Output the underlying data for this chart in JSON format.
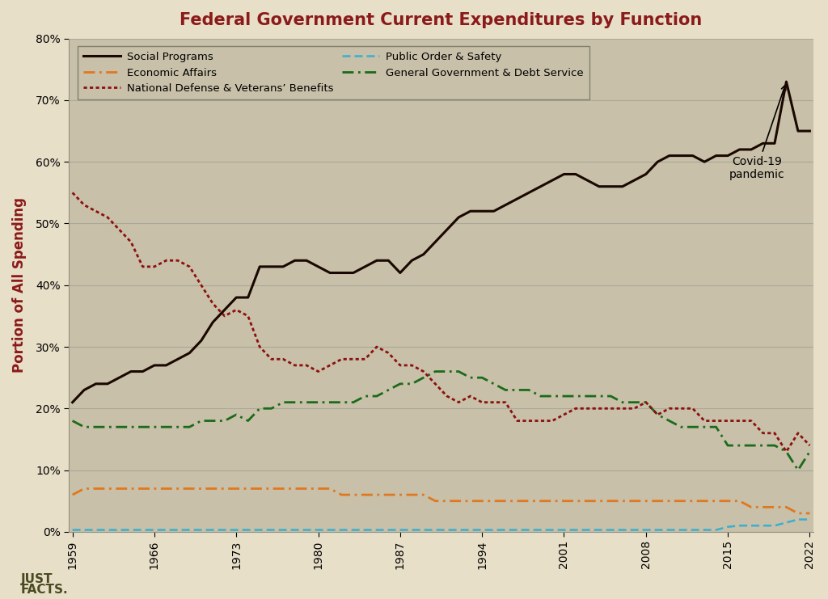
{
  "title": "Federal Government Current Expenditures by Function",
  "ylabel": "Portion of All Spending",
  "fig_bg_color": "#e8dfc8",
  "plot_bg_color": "#c8c0a8",
  "title_color": "#8b1a1a",
  "ylabel_color": "#8b1a1a",
  "years": [
    1959,
    1960,
    1961,
    1962,
    1963,
    1964,
    1965,
    1966,
    1967,
    1968,
    1969,
    1970,
    1971,
    1972,
    1973,
    1974,
    1975,
    1976,
    1977,
    1978,
    1979,
    1980,
    1981,
    1982,
    1983,
    1984,
    1985,
    1986,
    1987,
    1988,
    1989,
    1990,
    1991,
    1992,
    1993,
    1994,
    1995,
    1996,
    1997,
    1998,
    1999,
    2000,
    2001,
    2002,
    2003,
    2004,
    2005,
    2006,
    2007,
    2008,
    2009,
    2010,
    2011,
    2012,
    2013,
    2014,
    2015,
    2016,
    2017,
    2018,
    2019,
    2020,
    2021,
    2022
  ],
  "social_programs": [
    21,
    23,
    24,
    24,
    25,
    26,
    26,
    27,
    27,
    28,
    29,
    31,
    34,
    36,
    38,
    38,
    43,
    43,
    43,
    44,
    44,
    43,
    42,
    42,
    42,
    43,
    44,
    44,
    42,
    44,
    45,
    47,
    49,
    51,
    52,
    52,
    52,
    53,
    54,
    55,
    56,
    57,
    58,
    58,
    57,
    56,
    56,
    56,
    57,
    58,
    60,
    61,
    61,
    61,
    60,
    61,
    61,
    62,
    62,
    63,
    63,
    73,
    65,
    65
  ],
  "national_defense": [
    55,
    53,
    52,
    51,
    49,
    47,
    43,
    43,
    44,
    44,
    43,
    40,
    37,
    35,
    36,
    35,
    30,
    28,
    28,
    27,
    27,
    26,
    27,
    28,
    28,
    28,
    30,
    29,
    27,
    27,
    26,
    24,
    22,
    21,
    22,
    21,
    21,
    21,
    18,
    18,
    18,
    18,
    19,
    20,
    20,
    20,
    20,
    20,
    20,
    21,
    19,
    20,
    20,
    20,
    18,
    18,
    18,
    18,
    18,
    16,
    16,
    13,
    16,
    14
  ],
  "general_govt": [
    18,
    17,
    17,
    17,
    17,
    17,
    17,
    17,
    17,
    17,
    17,
    18,
    18,
    18,
    19,
    18,
    20,
    20,
    21,
    21,
    21,
    21,
    21,
    21,
    21,
    22,
    22,
    23,
    24,
    24,
    25,
    26,
    26,
    26,
    25,
    25,
    24,
    23,
    23,
    23,
    22,
    22,
    22,
    22,
    22,
    22,
    22,
    21,
    21,
    21,
    19,
    18,
    17,
    17,
    17,
    17,
    14,
    14,
    14,
    14,
    14,
    13,
    10,
    13
  ],
  "economic_affairs": [
    6,
    7,
    7,
    7,
    7,
    7,
    7,
    7,
    7,
    7,
    7,
    7,
    7,
    7,
    7,
    7,
    7,
    7,
    7,
    7,
    7,
    7,
    7,
    6,
    6,
    6,
    6,
    6,
    6,
    6,
    6,
    5,
    5,
    5,
    5,
    5,
    5,
    5,
    5,
    5,
    5,
    5,
    5,
    5,
    5,
    5,
    5,
    5,
    5,
    5,
    5,
    5,
    5,
    5,
    5,
    5,
    5,
    5,
    4,
    4,
    4,
    4,
    3,
    3
  ],
  "public_order": [
    0.3,
    0.3,
    0.3,
    0.3,
    0.3,
    0.3,
    0.3,
    0.3,
    0.3,
    0.3,
    0.3,
    0.3,
    0.3,
    0.3,
    0.3,
    0.3,
    0.3,
    0.3,
    0.3,
    0.3,
    0.3,
    0.3,
    0.3,
    0.3,
    0.3,
    0.3,
    0.3,
    0.3,
    0.3,
    0.3,
    0.3,
    0.3,
    0.3,
    0.3,
    0.3,
    0.3,
    0.3,
    0.3,
    0.3,
    0.3,
    0.3,
    0.3,
    0.3,
    0.3,
    0.3,
    0.3,
    0.3,
    0.3,
    0.3,
    0.3,
    0.3,
    0.3,
    0.3,
    0.3,
    0.3,
    0.3,
    0.8,
    1.0,
    1.0,
    1.0,
    1.0,
    1.5,
    2.0,
    2.0
  ],
  "social_color": "#1a0800",
  "defense_color": "#8b1010",
  "general_color": "#1a6b1a",
  "economic_color": "#e07820",
  "public_color": "#3aafcf",
  "grid_color": "#aaa898",
  "annotation_text": "Covid-19\npandemic",
  "xticks": [
    1959,
    1966,
    1973,
    1980,
    1987,
    1994,
    2001,
    2008,
    2015,
    2022
  ],
  "yticks": [
    0,
    10,
    20,
    30,
    40,
    50,
    60,
    70,
    80
  ],
  "ylim": [
    0,
    80
  ],
  "xlim": [
    1959,
    2022
  ]
}
